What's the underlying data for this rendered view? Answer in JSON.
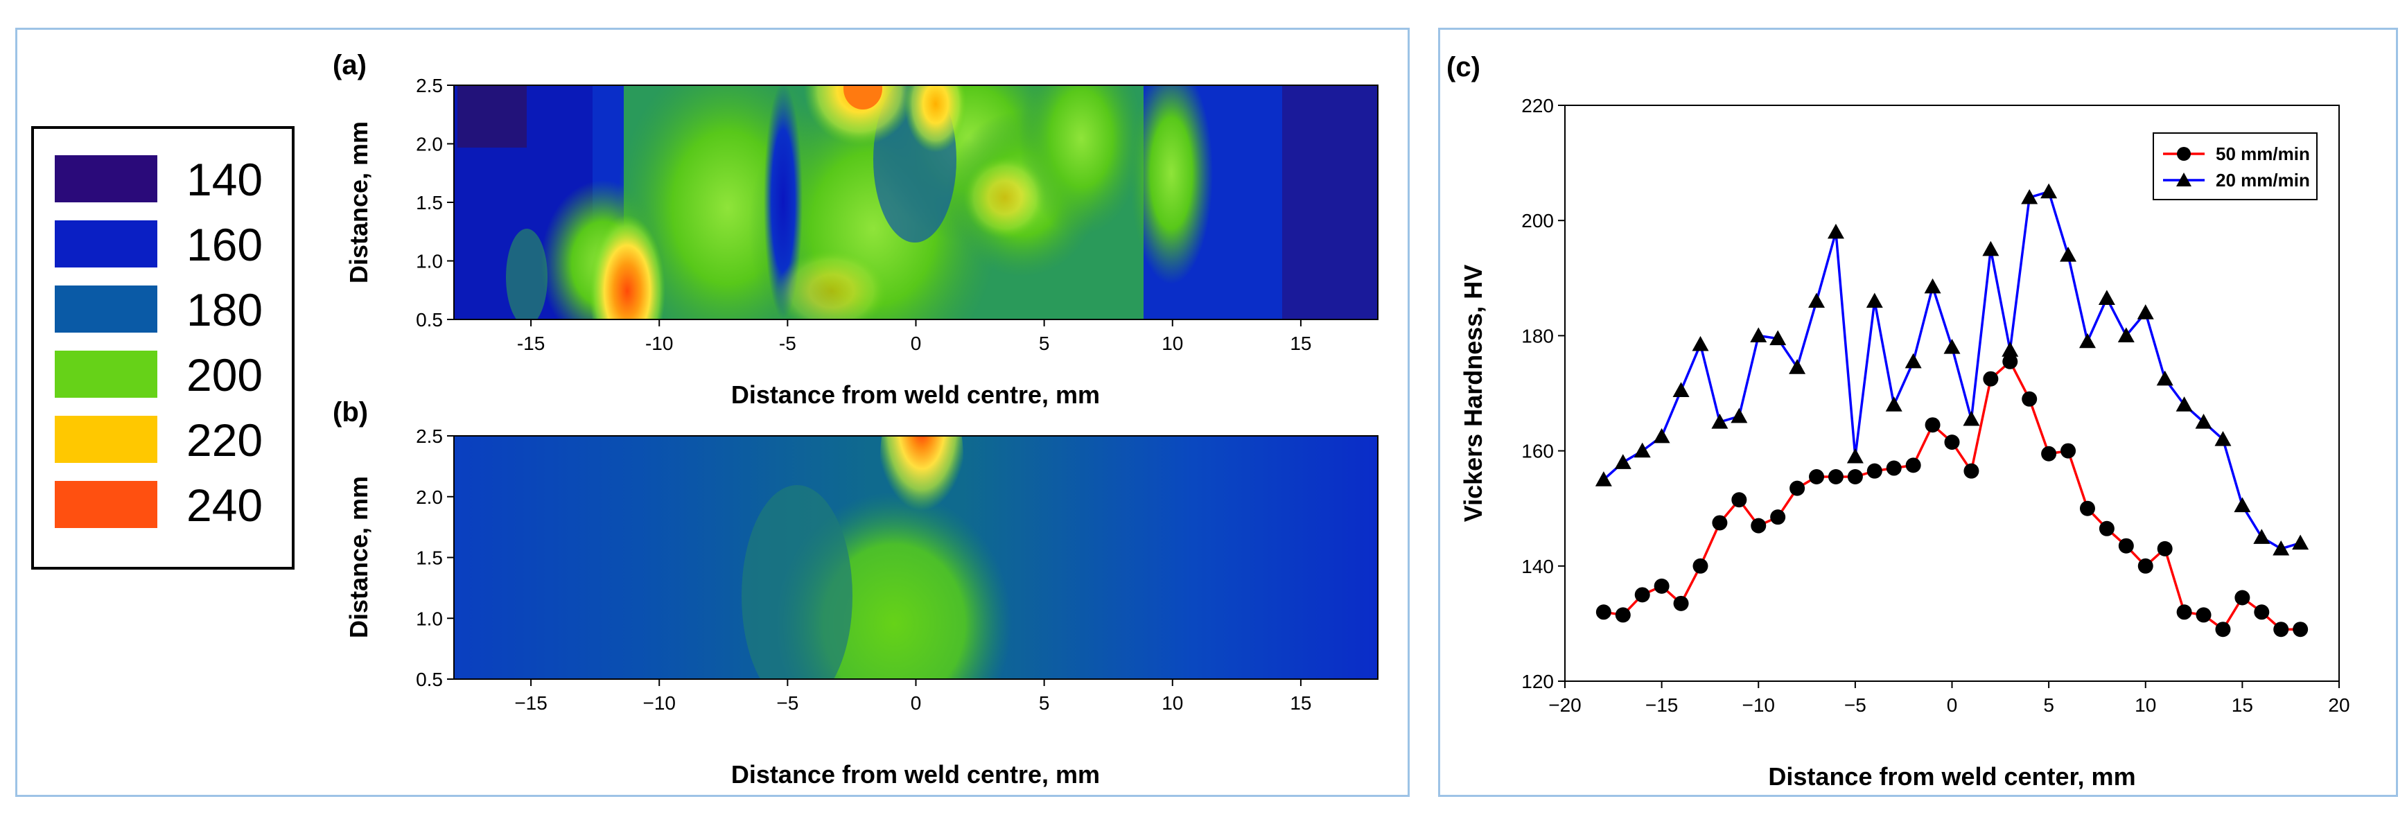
{
  "colors": {
    "frame": "#9dc3e6",
    "line_50": "#ff0000",
    "line_20": "#0000ff",
    "marker": "#000000"
  },
  "legend": {
    "items": [
      {
        "value": "140",
        "color": "#2a0a7a"
      },
      {
        "value": "160",
        "color": "#0a1fc4"
      },
      {
        "value": "180",
        "color": "#0a5aa6"
      },
      {
        "value": "200",
        "color": "#66d218"
      },
      {
        "value": "220",
        "color": "#ffc800"
      },
      {
        "value": "240",
        "color": "#ff5010"
      }
    ]
  },
  "panel_a": {
    "label": "(a)",
    "xlabel": "Distance from weld centre, mm",
    "ylabel": "Distance, mm",
    "xticks": [
      "-15",
      "-10",
      "-5",
      "0",
      "5",
      "10",
      "15"
    ],
    "yticks": [
      "0.5",
      "1.0",
      "1.5",
      "2.0",
      "2.5"
    ]
  },
  "panel_b": {
    "label": "(b)",
    "xlabel": "Distance from weld centre, mm",
    "ylabel": "Distance, mm",
    "xticks": [
      "−15",
      "−10",
      "−5",
      "0",
      "5",
      "10",
      "15"
    ],
    "yticks": [
      "0.5",
      "1.0",
      "1.5",
      "2.0",
      "2.5"
    ]
  },
  "chart_data": [
    {
      "type": "heatmap",
      "panel": "(a)",
      "title": "",
      "xlabel": "Distance from weld centre, mm",
      "ylabel": "Distance, mm",
      "xlim": [
        -18,
        18
      ],
      "ylim": [
        0.5,
        2.5
      ],
      "colorbar_levels": [
        140,
        160,
        180,
        200,
        220,
        240
      ],
      "hot_spots": [
        {
          "x": -11,
          "y": 0.6,
          "value": 240
        },
        {
          "x": -2,
          "y": 2.45,
          "value": 240
        },
        {
          "x": 1.5,
          "y": 2.3,
          "value": 220
        }
      ]
    },
    {
      "type": "heatmap",
      "panel": "(b)",
      "title": "",
      "xlabel": "Distance from weld centre, mm",
      "ylabel": "Distance, mm",
      "xlim": [
        -18,
        18
      ],
      "ylim": [
        0.5,
        2.5
      ],
      "colorbar_levels": [
        140,
        160,
        180,
        200,
        220,
        240
      ],
      "hot_spots": [
        {
          "x": 1.5,
          "y": 2.4,
          "value": 240
        }
      ]
    },
    {
      "type": "line",
      "panel": "(c)",
      "title": "",
      "xlabel": "Distance from weld center, mm",
      "ylabel": "Vickers Hardness, HV",
      "xlim": [
        -20,
        20
      ],
      "ylim": [
        120,
        220
      ],
      "xticks": [
        "−20",
        "−15",
        "−10",
        "−5",
        "0",
        "5",
        "10",
        "15",
        "20"
      ],
      "yticks": [
        "120",
        "140",
        "160",
        "180",
        "200",
        "220"
      ],
      "legend_position": "top-right",
      "series": [
        {
          "name": "50 mm/min",
          "color": "#ff0000",
          "marker": "circle",
          "x": [
            -18,
            -17,
            -16,
            -15,
            -14,
            -13,
            -12,
            -11,
            -10,
            -9,
            -8,
            -7,
            -6,
            -5,
            -4,
            -3,
            -2,
            -1,
            0,
            1,
            2,
            3,
            4,
            5,
            6,
            7,
            8,
            9,
            10,
            11,
            12,
            13,
            14,
            15,
            16,
            17,
            18
          ],
          "y": [
            132,
            131.5,
            135,
            136.5,
            133.5,
            140,
            147.5,
            151.5,
            147,
            148.5,
            153.5,
            155.5,
            155.5,
            155.5,
            156.5,
            157,
            157.5,
            164.5,
            161.5,
            156.5,
            172.5,
            175.5,
            169,
            159.5,
            160,
            150,
            146.5,
            143.5,
            140,
            143,
            132,
            131.5,
            129,
            134.5,
            132,
            129,
            129
          ]
        },
        {
          "name": "20 mm/min",
          "color": "#0000ff",
          "marker": "triangle",
          "x": [
            -18,
            -17,
            -16,
            -15,
            -14,
            -13,
            -12,
            -11,
            -10,
            -9,
            -8,
            -7,
            -6,
            -5,
            -4,
            -3,
            -2,
            -1,
            0,
            1,
            2,
            3,
            4,
            5,
            6,
            7,
            8,
            9,
            10,
            11,
            12,
            13,
            14,
            15,
            16,
            17,
            18
          ],
          "y": [
            155,
            158,
            160,
            162.5,
            170.5,
            178.5,
            165,
            166,
            180,
            179.5,
            174.5,
            186,
            198,
            159,
            186,
            168,
            175.5,
            188.5,
            178,
            165.5,
            195,
            177.5,
            204,
            205,
            194,
            179,
            186.5,
            180,
            184,
            172.5,
            168,
            165,
            162,
            150.5,
            145,
            143,
            144
          ]
        }
      ]
    }
  ]
}
